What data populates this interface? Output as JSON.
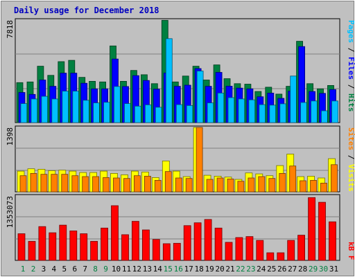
{
  "chart_data": [
    {
      "type": "bar",
      "title": "Daily usage for December 2018",
      "ylabel_parts": [
        {
          "text": "Pages",
          "color": "#00c0ff"
        },
        {
          "text": " / ",
          "color": "#000000"
        },
        {
          "text": "Files",
          "color": "#0000ff"
        },
        {
          "text": " / ",
          "color": "#000000"
        },
        {
          "text": "Hits",
          "color": "#008040"
        }
      ],
      "y_tick_label": "7818",
      "y_max": 7818,
      "grid": true,
      "categories": [
        "1",
        "2",
        "3",
        "4",
        "5",
        "6",
        "7",
        "8",
        "9",
        "10",
        "11",
        "12",
        "13",
        "14",
        "15",
        "16",
        "17",
        "18",
        "19",
        "20",
        "21",
        "22",
        "23",
        "24",
        "25",
        "26",
        "27",
        "28",
        "29",
        "30",
        "31"
      ],
      "weekend_days": [
        "1",
        "2",
        "8",
        "9",
        "15",
        "16",
        "22",
        "23",
        "29",
        "30"
      ],
      "series": [
        {
          "name": "Hits",
          "color": "#008040",
          "values": [
            3050,
            3100,
            4300,
            3600,
            4650,
            4750,
            3450,
            3150,
            3100,
            5850,
            3150,
            3980,
            3650,
            2970,
            7800,
            3100,
            3550,
            4300,
            3250,
            4400,
            3350,
            2970,
            2930,
            2370,
            2700,
            2170,
            2770,
            6200,
            2970,
            2570,
            2830
          ]
        },
        {
          "name": "Files",
          "color": "#0000ff",
          "values": [
            2300,
            2150,
            3250,
            2770,
            3770,
            3770,
            3000,
            2570,
            2570,
            4850,
            2750,
            3580,
            3210,
            2550,
            3780,
            2770,
            2850,
            4120,
            2770,
            3830,
            2780,
            2630,
            2570,
            1970,
            2250,
            1850,
            2400,
            5800,
            2370,
            2230,
            2520
          ]
        },
        {
          "name": "Pages",
          "color": "#00c0ff",
          "values": [
            1450,
            1800,
            2000,
            1800,
            2400,
            2400,
            1700,
            1500,
            1550,
            2750,
            1450,
            1250,
            1350,
            1170,
            6400,
            1370,
            1300,
            3930,
            1500,
            2250,
            1900,
            1800,
            1730,
            1370,
            1330,
            1430,
            3550,
            1530,
            1650,
            900,
            1650
          ]
        }
      ],
      "series_order_back_to_front": [
        "Hits",
        "Files",
        "Pages"
      ]
    },
    {
      "type": "bar",
      "ylabel_parts": [
        {
          "text": "Sites",
          "color": "#ff8000"
        },
        {
          "text": " / ",
          "color": "#000000"
        },
        {
          "text": "Visits",
          "color": "#ffff00"
        }
      ],
      "y_tick_label": "1398",
      "y_max": 1398,
      "grid": true,
      "categories": [
        "1",
        "2",
        "3",
        "4",
        "5",
        "6",
        "7",
        "8",
        "9",
        "10",
        "11",
        "12",
        "13",
        "14",
        "15",
        "16",
        "17",
        "18",
        "19",
        "20",
        "21",
        "22",
        "23",
        "24",
        "25",
        "26",
        "27",
        "28",
        "29",
        "30",
        "31"
      ],
      "series": [
        {
          "name": "Visits",
          "color": "#ffff00",
          "values": [
            450,
            500,
            490,
            460,
            470,
            450,
            420,
            420,
            450,
            400,
            370,
            450,
            430,
            310,
            670,
            450,
            330,
            1398,
            360,
            340,
            320,
            270,
            410,
            390,
            350,
            570,
            820,
            330,
            340,
            300,
            720
          ]
        },
        {
          "name": "Sites",
          "color": "#ff8000",
          "values": [
            350,
            400,
            380,
            380,
            380,
            350,
            330,
            330,
            310,
            300,
            290,
            350,
            340,
            250,
            440,
            300,
            290,
            1398,
            270,
            300,
            280,
            230,
            300,
            330,
            290,
            400,
            560,
            240,
            250,
            190,
            590
          ]
        }
      ],
      "series_order_back_to_front": [
        "Visits",
        "Sites"
      ]
    },
    {
      "type": "bar",
      "ylabel_parts": [
        {
          "text": "kB F",
          "color": "#ff0000"
        }
      ],
      "y_tick_label": "1353073",
      "y_max": 1353073,
      "grid": true,
      "categories": [
        "1",
        "2",
        "3",
        "4",
        "5",
        "6",
        "7",
        "8",
        "9",
        "10",
        "11",
        "12",
        "13",
        "14",
        "15",
        "16",
        "17",
        "18",
        "19",
        "20",
        "21",
        "22",
        "23",
        "24",
        "25",
        "26",
        "27",
        "28",
        "29",
        "30",
        "31"
      ],
      "series": [
        {
          "name": "kB F",
          "color": "#ff0000",
          "values": [
            560000,
            400000,
            710000,
            580000,
            740000,
            620000,
            560000,
            400000,
            680000,
            1150000,
            540000,
            820000,
            640000,
            440000,
            350000,
            360000,
            730000,
            790000,
            860000,
            680000,
            380000,
            480000,
            500000,
            420000,
            160000,
            160000,
            420000,
            530000,
            1320000,
            1220000,
            810000
          ]
        }
      ]
    }
  ]
}
